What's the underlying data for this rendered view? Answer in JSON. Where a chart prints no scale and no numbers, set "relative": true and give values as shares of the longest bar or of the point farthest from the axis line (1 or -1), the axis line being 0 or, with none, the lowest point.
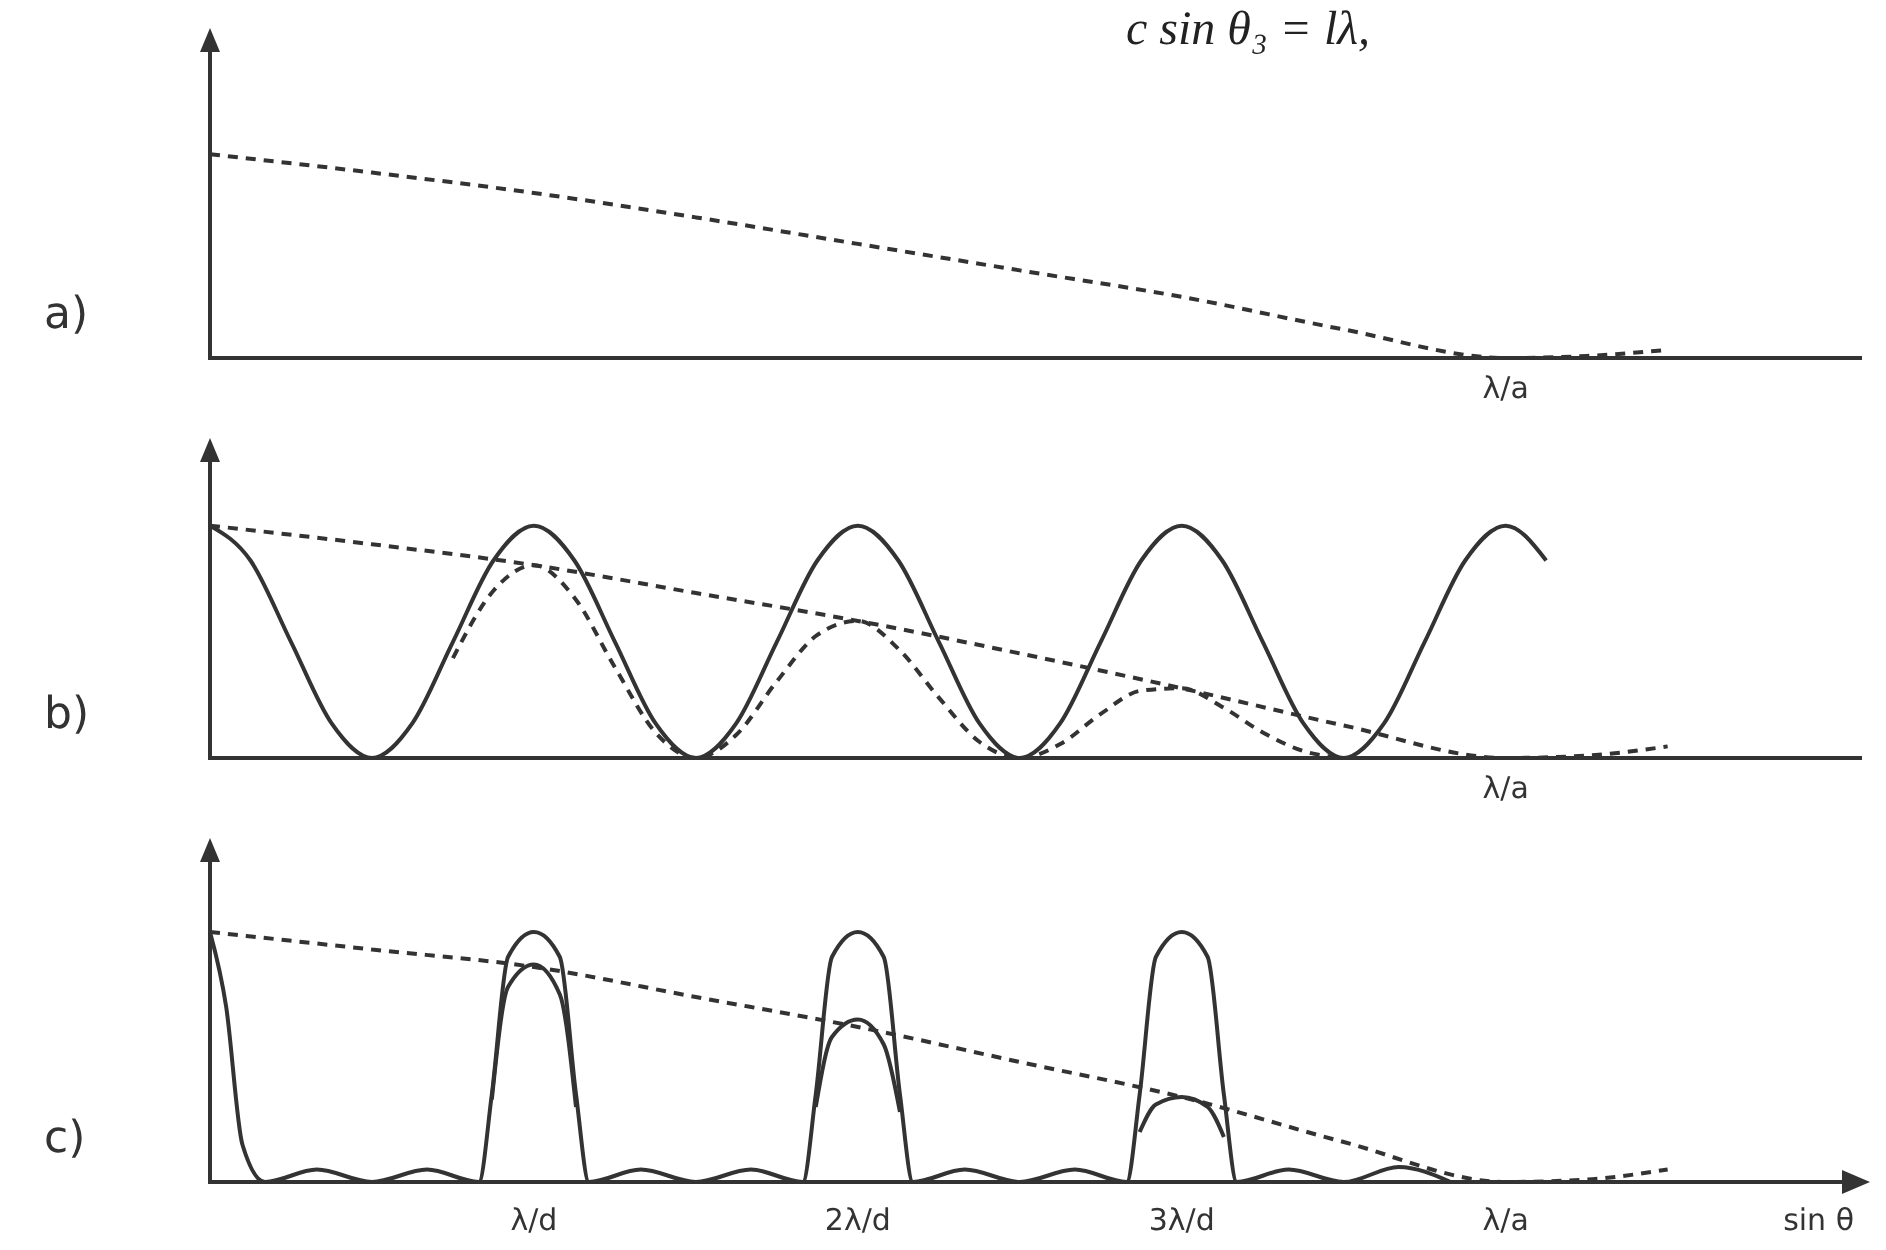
{
  "chart_data": [
    {
      "type": "line",
      "title": "a)",
      "relative": true,
      "xlim": [
        0,
        5.1
      ],
      "annotations": [
        "c sin θ₃ = lλ,",
        {
          "text": "λ/a",
          "x": 4,
          "y": 0
        }
      ],
      "series": [
        {
          "color": "#333333",
          "line_style": "dashed",
          "x": [
            0,
            0.5,
            1,
            1.5,
            2,
            2.5,
            3,
            3.5,
            4,
            4.25,
            4.5
          ],
          "values": [
            1,
            0.91,
            0.81,
            0.69,
            0.56,
            0.43,
            0.3,
            0.14,
            0,
            0.01,
            0.04
          ]
        }
      ]
    },
    {
      "type": "line",
      "title": "b)",
      "relative": true,
      "xlim": [
        0,
        5.1
      ],
      "annotations": [
        {
          "text": "λ/a",
          "x": 4,
          "y": 0
        }
      ],
      "series": [
        {
          "color": "#333333",
          "line_style": "solid",
          "x": [
            0,
            0.125,
            0.25,
            0.375,
            0.5,
            0.625,
            0.75,
            0.875,
            1,
            1.125,
            1.25,
            1.375,
            1.5,
            1.625,
            1.75,
            1.875,
            2,
            2.125,
            2.25,
            2.375,
            2.5,
            2.625,
            2.75,
            2.875,
            3,
            3.125,
            3.25,
            3.375,
            3.5,
            3.625,
            3.75,
            3.875,
            4,
            4.125
          ],
          "values": [
            1,
            0.85,
            0.5,
            0.15,
            0,
            0.15,
            0.5,
            0.85,
            1,
            0.85,
            0.5,
            0.15,
            0,
            0.15,
            0.5,
            0.85,
            1,
            0.85,
            0.5,
            0.15,
            0,
            0.15,
            0.5,
            0.85,
            1,
            0.85,
            0.5,
            0.15,
            0,
            0.15,
            0.5,
            0.85,
            1,
            0.85
          ]
        },
        {
          "color": "#333333",
          "line_style": "dashed",
          "x": [
            0,
            0.5,
            1,
            1.5,
            2,
            2.5,
            3,
            3.5,
            4,
            4.25,
            4.5
          ],
          "values": [
            1,
            0.92,
            0.83,
            0.71,
            0.59,
            0.45,
            0.3,
            0.14,
            0,
            0.01,
            0.05
          ]
        },
        {
          "color": "#333333",
          "line_style": "dashed",
          "x": [
            0.75,
            0.875,
            1,
            1.125,
            1.25,
            1.375,
            1.5,
            1.625,
            1.75,
            1.875,
            2,
            2.125,
            2.25,
            2.375,
            2.5,
            2.625,
            2.75,
            2.875,
            3,
            3.125,
            3.25,
            3.375,
            3.5
          ],
          "values": [
            0.43,
            0.72,
            0.83,
            0.69,
            0.39,
            0.11,
            0,
            0.1,
            0.33,
            0.53,
            0.59,
            0.47,
            0.26,
            0.07,
            0,
            0.06,
            0.19,
            0.29,
            0.3,
            0.22,
            0.11,
            0.03,
            0
          ]
        }
      ]
    },
    {
      "type": "line",
      "title": "c)",
      "xlabel": "sin θ",
      "relative": true,
      "xlim": [
        0,
        5.1
      ],
      "xticks": [
        {
          "value": 1,
          "label": "λ/d"
        },
        {
          "value": 2,
          "label": "2λ/d"
        },
        {
          "value": 3,
          "label": "3λ/d"
        },
        {
          "value": 4,
          "label": "λ/a"
        }
      ],
      "series": [
        {
          "color": "#333333",
          "line_style": "solid",
          "x": [
            0,
            0.05,
            0.1,
            0.17,
            0.33,
            0.5,
            0.67,
            0.83,
            0.87,
            0.92,
            1,
            1.08,
            1.13,
            1.17,
            1.33,
            1.5,
            1.67,
            1.83,
            1.87,
            1.92,
            2,
            2.08,
            2.13,
            2.17,
            2.33,
            2.5,
            2.67,
            2.83,
            2.87,
            2.92,
            3,
            3.08,
            3.13,
            3.17,
            3.33,
            3.5,
            3.67,
            3.83
          ],
          "values": [
            1,
            0.7,
            0.15,
            0,
            0.05,
            0,
            0.05,
            0,
            0.35,
            0.9,
            1,
            0.9,
            0.35,
            0,
            0.05,
            0,
            0.05,
            0,
            0.35,
            0.9,
            1,
            0.9,
            0.35,
            0,
            0.05,
            0,
            0.05,
            0,
            0.35,
            0.9,
            1,
            0.9,
            0.35,
            0,
            0.05,
            0,
            0.06,
            0
          ]
        },
        {
          "color": "#333333",
          "line_style": "dashed",
          "x": [
            0,
            0.5,
            1,
            1.5,
            2,
            2.5,
            3,
            3.5,
            4,
            4.25,
            4.5
          ],
          "values": [
            1,
            0.93,
            0.86,
            0.74,
            0.62,
            0.48,
            0.34,
            0.16,
            0,
            0.01,
            0.05
          ]
        },
        {
          "color": "#333333",
          "line_style": "solid",
          "x": [
            0.87,
            0.92,
            1,
            1.08,
            1.13,
            1.2,
            1.87,
            1.92,
            2,
            2.08,
            2.13,
            2.2,
            2.87,
            2.92,
            3,
            3.08,
            3.13
          ],
          "values": [
            0.33,
            0.78,
            0.87,
            0.75,
            0.3,
            null,
            0.3,
            0.58,
            0.65,
            0.55,
            0.28,
            null,
            0.2,
            0.31,
            0.34,
            0.3,
            0.18
          ]
        }
      ]
    }
  ]
}
